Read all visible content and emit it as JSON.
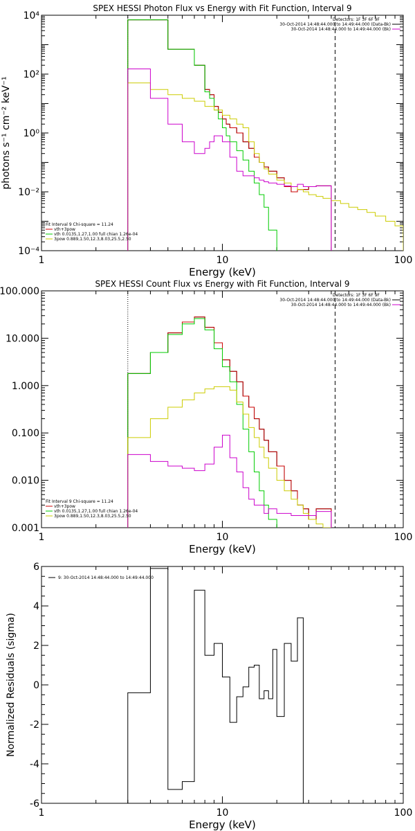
{
  "chart_data": [
    {
      "id": "photon",
      "type": "line",
      "title": "SPEX HESSI Photon Flux vs Energy with Fit Function, Interval 9",
      "xlabel": "Energy (keV)",
      "ylabel": "photons s⁻¹ cm⁻² keV⁻¹",
      "xscale": "log",
      "yscale": "log",
      "xlim": [
        1,
        100
      ],
      "ylim": [
        0.0001,
        10000
      ],
      "xticks": [
        {
          "v": 1,
          "label": "1"
        },
        {
          "v": 10,
          "label": "10"
        },
        {
          "v": 100,
          "label": "100"
        }
      ],
      "yticks": [
        {
          "v": 10000,
          "label": "10⁴"
        },
        {
          "v": 100,
          "label": "10²"
        },
        {
          "v": 1,
          "label": "10⁰"
        },
        {
          "v": 0.01,
          "label": "10⁻²"
        },
        {
          "v": 0.0001,
          "label": "10⁻⁴"
        }
      ],
      "vlines": [
        {
          "x": 3,
          "style": "dotted",
          "color": "#000000"
        },
        {
          "x": 42,
          "style": "dashed",
          "color": "#000000"
        }
      ],
      "legend_topright": {
        "detectors": "Detectors: 1F 3F 6F 9F",
        "entries": [
          {
            "label": "30-Oct-2014 14:48:44.000 to 14:49:44.000 (Data-Bk)",
            "color": "#000000"
          },
          {
            "label": "30-Oct-2014 14:48:44.000 to 14:49:44.000 (Bk)",
            "color": "#cc00cc"
          }
        ]
      },
      "legend_bottomleft": {
        "title": "Fit Interval 9   Chi-square = 11.24",
        "entries": [
          {
            "label": "vth+3pow",
            "color": "#cc0000"
          },
          {
            "label": "vth 0.0135,1.27,1.00  full chian 1.26e-04",
            "color": "#00cc00"
          },
          {
            "label": "3pow 0.889,1.50,12.3,8.03,25.5,2.50",
            "color": "#cccc00"
          }
        ]
      },
      "edges": [
        3.0,
        3.5,
        4.0,
        4.5,
        5.0,
        5.5,
        6.0,
        6.5,
        7.0,
        7.5,
        8.0,
        8.5,
        9.0,
        9.5,
        10.0,
        10.5,
        11.0,
        12.0,
        13.0,
        14.0,
        15.0,
        16.0,
        17.0,
        18.0,
        20.0,
        22.0,
        24.0,
        26.0,
        28.0,
        30.0,
        33.0,
        36.0,
        40.0,
        45.0,
        50.0,
        56.0,
        63.0,
        70.0,
        80.0,
        90.0,
        100.0
      ],
      "series": [
        {
          "color": "#000000",
          "lastIndex": 31,
          "values": [
            7000,
            7000,
            7000,
            7000,
            700,
            700,
            700,
            700,
            200,
            200,
            30,
            20,
            8,
            5,
            3,
            2,
            1.5,
            1,
            0.5,
            0.3,
            0.15,
            0.1,
            0.07,
            0.05,
            0.03,
            0.015,
            0.01,
            0.012,
            0.012,
            0.015,
            0.016,
            0.016
          ]
        },
        {
          "color": "#cc0000",
          "lastIndex": 31,
          "values": [
            7000,
            7000,
            7000,
            7000,
            700,
            700,
            700,
            700,
            200,
            200,
            30,
            20,
            8,
            5,
            3,
            2,
            1.5,
            1,
            0.5,
            0.3,
            0.15,
            0.1,
            0.07,
            0.05,
            0.03,
            0.015,
            0.01,
            0.012,
            0.012,
            0.015,
            0.016,
            0.016
          ]
        },
        {
          "color": "#00cc00",
          "lastIndex": 23,
          "values": [
            7000,
            7000,
            7000,
            7000,
            700,
            700,
            700,
            700,
            200,
            200,
            25,
            15,
            6,
            3,
            1.5,
            0.8,
            0.5,
            0.25,
            0.12,
            0.05,
            0.02,
            0.008,
            0.003,
            0.0005
          ]
        },
        {
          "color": "#cccc00",
          "lastIndex": 39,
          "values": [
            50,
            50,
            30,
            30,
            20,
            20,
            15,
            15,
            12,
            12,
            8,
            8,
            6,
            6,
            4,
            4,
            3,
            2,
            1.5,
            0.5,
            0.2,
            0.1,
            0.06,
            0.04,
            0.025,
            0.02,
            0.015,
            0.012,
            0.01,
            0.008,
            0.007,
            0.006,
            0.005,
            0.004,
            0.003,
            0.0025,
            0.002,
            0.0015,
            0.001,
            0.0007
          ]
        },
        {
          "color": "#cc00cc",
          "lastIndex": 31,
          "values": [
            150,
            150,
            15,
            15,
            2,
            2,
            0.5,
            0.5,
            0.2,
            0.2,
            0.3,
            0.5,
            0.8,
            0.8,
            0.5,
            0.5,
            0.15,
            0.05,
            0.035,
            0.035,
            0.03,
            0.025,
            0.022,
            0.02,
            0.018,
            0.016,
            0.015,
            0.018,
            0.015,
            0.015,
            0.016,
            0.016
          ]
        }
      ]
    },
    {
      "id": "count",
      "type": "line",
      "title": "SPEX HESSI Count Flux vs Energy with Fit Function, Interval 9",
      "xlabel": "Energy (keV)",
      "ylabel": "",
      "xscale": "log",
      "yscale": "log",
      "xlim": [
        1,
        100
      ],
      "ylim": [
        0.001,
        100
      ],
      "xticks": [
        {
          "v": 1,
          "label": "1"
        },
        {
          "v": 10,
          "label": "10"
        },
        {
          "v": 100,
          "label": "100"
        }
      ],
      "yticks": [
        {
          "v": 100,
          "label": "100.000"
        },
        {
          "v": 10,
          "label": "10.000"
        },
        {
          "v": 1,
          "label": "1.000"
        },
        {
          "v": 0.1,
          "label": "0.100"
        },
        {
          "v": 0.01,
          "label": "0.010"
        },
        {
          "v": 0.001,
          "label": "0.001"
        }
      ],
      "vlines": [
        {
          "x": 3,
          "style": "dotted",
          "color": "#000000"
        },
        {
          "x": 42,
          "style": "dashed",
          "color": "#000000"
        }
      ],
      "legend_topright": {
        "detectors": "Detectors: 1F 3F 6F 9F",
        "entries": [
          {
            "label": "30-Oct-2014 14:48:44.000 to 14:49:44.000 (Data-Bk)",
            "color": "#000000"
          },
          {
            "label": "30-Oct-2014 14:48:44.000 to 14:49:44.000 (Bk)",
            "color": "#cc00cc"
          }
        ]
      },
      "legend_bottomleft": {
        "title": "Fit Interval 9   Chi-square = 11.24",
        "entries": [
          {
            "label": "vth+3pow",
            "color": "#cc0000"
          },
          {
            "label": "vth 0.0135,1.27,1.00  full chian 1.26e-04",
            "color": "#00cc00"
          },
          {
            "label": "3pow 0.889,1.50,12.3,8.03,25.5,2.50",
            "color": "#cccc00"
          }
        ]
      },
      "edges": [
        3.0,
        3.5,
        4.0,
        4.5,
        5.0,
        5.5,
        6.0,
        6.5,
        7.0,
        7.5,
        8.0,
        8.5,
        9.0,
        9.5,
        10.0,
        10.5,
        11.0,
        12.0,
        13.0,
        14.0,
        15.0,
        16.0,
        17.0,
        18.0,
        20.0,
        22.0,
        24.0,
        26.0,
        28.0,
        30.0,
        33.0,
        36.0,
        40.0,
        45.0
      ],
      "series": [
        {
          "color": "#000000",
          "lastIndex": 31,
          "values": [
            1.8,
            1.8,
            5,
            5,
            13,
            13,
            22,
            22,
            28,
            28,
            17,
            17,
            8,
            8,
            3.5,
            3.5,
            2,
            1.2,
            0.6,
            0.35,
            0.2,
            0.12,
            0.07,
            0.04,
            0.02,
            0.01,
            0.006,
            0.003,
            0.0025,
            0.0015,
            0.0025,
            0.0025
          ]
        },
        {
          "color": "#cc0000",
          "lastIndex": 31,
          "values": [
            1.8,
            1.8,
            5,
            5,
            13,
            13,
            22,
            22,
            28,
            28,
            17,
            17,
            8,
            8,
            3.5,
            3.5,
            2,
            1.2,
            0.6,
            0.35,
            0.2,
            0.12,
            0.07,
            0.04,
            0.02,
            0.01,
            0.006,
            0.003,
            0.0025,
            0.0015,
            0.0025,
            0.0025
          ]
        },
        {
          "color": "#00cc00",
          "lastIndex": 24,
          "values": [
            1.8,
            1.8,
            5,
            5,
            12,
            12,
            20,
            20,
            26,
            26,
            15,
            15,
            6,
            6,
            2.5,
            2.5,
            1.2,
            0.4,
            0.12,
            0.04,
            0.015,
            0.006,
            0.003,
            0.0015,
            0.0006
          ]
        },
        {
          "color": "#cccc00",
          "lastIndex": 32,
          "values": [
            0.08,
            0.08,
            0.2,
            0.2,
            0.35,
            0.35,
            0.5,
            0.5,
            0.7,
            0.7,
            0.85,
            0.85,
            0.95,
            0.95,
            0.95,
            0.95,
            0.8,
            0.45,
            0.25,
            0.13,
            0.08,
            0.05,
            0.03,
            0.018,
            0.01,
            0.006,
            0.004,
            0.003,
            0.002,
            0.0015,
            0.0012,
            0.001,
            0.0008
          ]
        },
        {
          "color": "#cc00cc",
          "lastIndex": 31,
          "values": [
            0.035,
            0.035,
            0.025,
            0.025,
            0.02,
            0.02,
            0.018,
            0.018,
            0.016,
            0.016,
            0.022,
            0.022,
            0.05,
            0.05,
            0.09,
            0.09,
            0.03,
            0.015,
            0.007,
            0.004,
            0.003,
            0.003,
            0.002,
            0.0025,
            0.002,
            0.002,
            0.0018,
            0.0018,
            0.0018,
            0.0018,
            0.0022,
            0.0022
          ]
        }
      ]
    },
    {
      "id": "resid",
      "type": "line",
      "title": "",
      "xlabel": "Energy (keV)",
      "ylabel": "Normalized Residuals (sigma)",
      "xscale": "log",
      "yscale": "linear",
      "xlim": [
        1,
        100
      ],
      "ylim": [
        -6,
        6
      ],
      "xticks": [
        {
          "v": 1,
          "label": "1"
        },
        {
          "v": 10,
          "label": "10"
        },
        {
          "v": 100,
          "label": "100"
        }
      ],
      "yticks": [
        {
          "v": 6,
          "label": "6"
        },
        {
          "v": 4,
          "label": "4"
        },
        {
          "v": 2,
          "label": "2"
        },
        {
          "v": 0,
          "label": "0"
        },
        {
          "v": -2,
          "label": "-2"
        },
        {
          "v": -4,
          "label": "-4"
        },
        {
          "v": -6,
          "label": "-6"
        }
      ],
      "vlines": [],
      "legend_topleft": {
        "entries": [
          {
            "label": "9: 30-Oct-2014 14:48:44.000 to 14:49:44.000",
            "color": "#000000"
          }
        ]
      },
      "edges": [
        3.0,
        4.0,
        5.0,
        6.0,
        7.0,
        8.0,
        9.0,
        10.0,
        11.0,
        12.0,
        13.0,
        14.0,
        15.0,
        16.0,
        17.0,
        18.0,
        19.0,
        20.0,
        22.0,
        24.0,
        26.0,
        28.0,
        30.0,
        33.0,
        36.0,
        40.0
      ],
      "series": [
        {
          "color": "#000000",
          "values": [
            -0.4,
            5.9,
            -5.3,
            -4.9,
            4.8,
            1.5,
            2.1,
            0.4,
            -1.9,
            -0.6,
            -0.1,
            0.9,
            1.0,
            -0.7,
            -0.3,
            -0.7,
            1.8,
            -1.6,
            2.1,
            1.2,
            3.4
          ]
        }
      ]
    }
  ]
}
